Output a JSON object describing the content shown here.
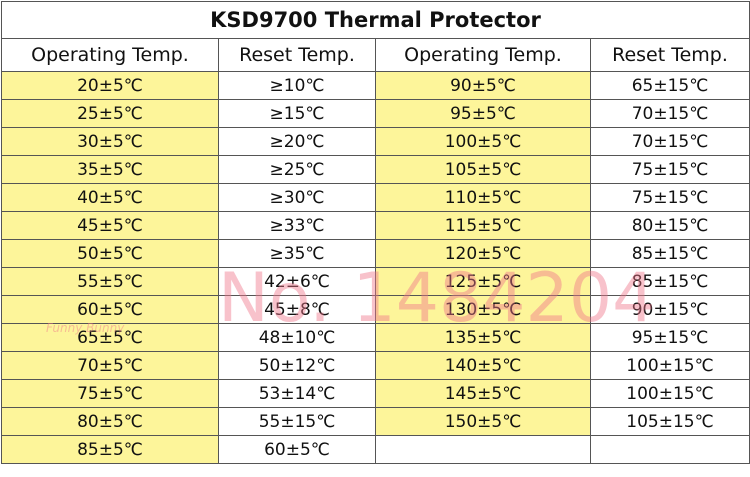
{
  "table": {
    "title": "KSD9700 Thermal Protector",
    "headers": [
      "Operating Temp.",
      "Reset Temp.",
      "Operating Temp.",
      "Reset Temp."
    ],
    "left_rows": [
      [
        "20±5℃",
        "≥10℃"
      ],
      [
        "25±5℃",
        "≥15℃"
      ],
      [
        "30±5℃",
        "≥20℃"
      ],
      [
        "35±5℃",
        "≥25℃"
      ],
      [
        "40±5℃",
        "≥30℃"
      ],
      [
        "45±5℃",
        "≥33℃"
      ],
      [
        "50±5℃",
        "≥35℃"
      ],
      [
        "55±5℃",
        "42±6℃"
      ],
      [
        "60±5℃",
        "45±8℃"
      ],
      [
        "65±5℃",
        "48±10℃"
      ],
      [
        "70±5℃",
        "50±12℃"
      ],
      [
        "75±5℃",
        "53±14℃"
      ],
      [
        "80±5℃",
        "55±15℃"
      ],
      [
        "85±5℃",
        "60±5℃"
      ]
    ],
    "right_rows": [
      [
        "90±5℃",
        "65±15℃"
      ],
      [
        "95±5℃",
        "70±15℃"
      ],
      [
        "100±5℃",
        "70±15℃"
      ],
      [
        "105±5℃",
        "75±15℃"
      ],
      [
        "110±5℃",
        "75±15℃"
      ],
      [
        "115±5℃",
        "80±15℃"
      ],
      [
        "120±5℃",
        "85±15℃"
      ],
      [
        "125±5℃",
        "85±15℃"
      ],
      [
        "130±5℃",
        "90±15℃"
      ],
      [
        "135±5℃",
        "95±15℃"
      ],
      [
        "140±5℃",
        "100±15℃"
      ],
      [
        "145±5℃",
        "100±15℃"
      ],
      [
        "150±5℃",
        "105±15℃"
      ]
    ]
  },
  "watermark": {
    "text": "No. 1484204",
    "brand": "Funny Bunny"
  }
}
